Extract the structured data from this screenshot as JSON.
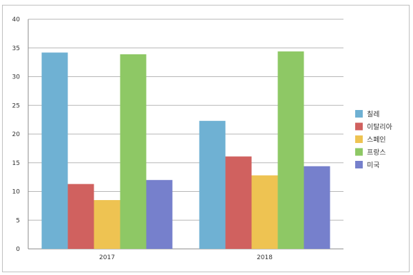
{
  "chart_data": {
    "type": "bar",
    "categories": [
      "2017",
      "2018"
    ],
    "series": [
      {
        "name": "칠레",
        "color": "#6fb1d3",
        "values": [
          34.2,
          22.3
        ]
      },
      {
        "name": "이탈리아",
        "color": "#d0615f",
        "values": [
          11.3,
          16.1
        ]
      },
      {
        "name": "스페인",
        "color": "#eec352",
        "values": [
          8.5,
          12.8
        ]
      },
      {
        "name": "프랑스",
        "color": "#8ec865",
        "values": [
          33.9,
          34.4
        ]
      },
      {
        "name": "미국",
        "color": "#7680cc",
        "values": [
          12.0,
          14.4
        ]
      }
    ],
    "title": "",
    "xlabel": "",
    "ylabel": "",
    "ylim": [
      0,
      40
    ],
    "yticks": [
      0,
      5,
      10,
      15,
      20,
      25,
      30,
      35,
      40
    ],
    "grid": true,
    "legend_position": "right"
  }
}
